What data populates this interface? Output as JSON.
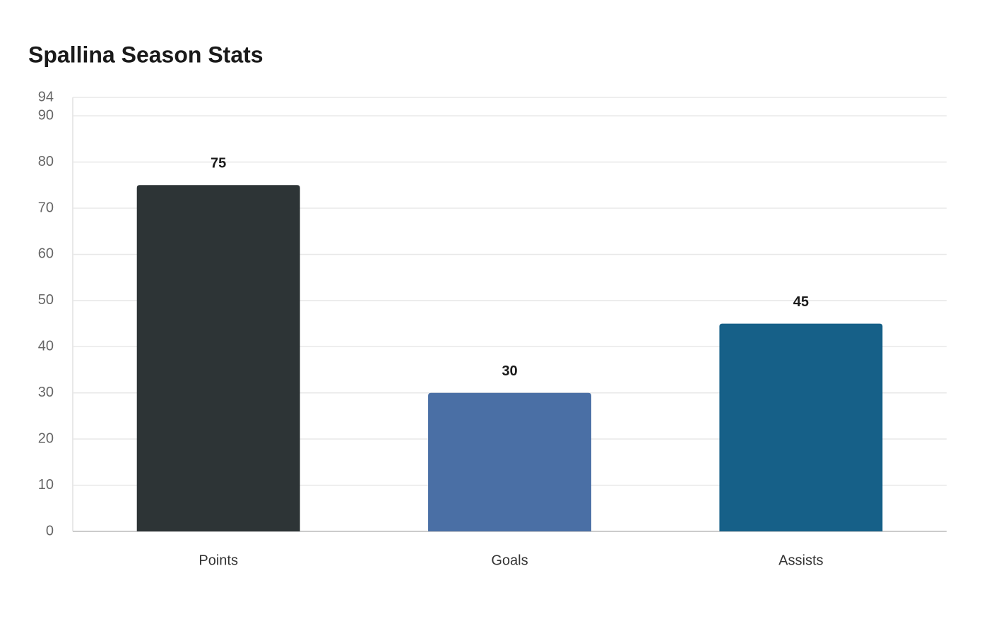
{
  "chart_data": {
    "type": "bar",
    "title": "Spallina Season Stats",
    "categories": [
      "Points",
      "Goals",
      "Assists"
    ],
    "values": [
      75,
      30,
      45
    ],
    "colors": [
      "#2d3436",
      "#4a6fa5",
      "#166088"
    ],
    "ylim": [
      0,
      94
    ],
    "yticks": [
      0,
      10,
      20,
      30,
      40,
      50,
      60,
      70,
      80,
      90,
      94
    ],
    "grid": true
  }
}
